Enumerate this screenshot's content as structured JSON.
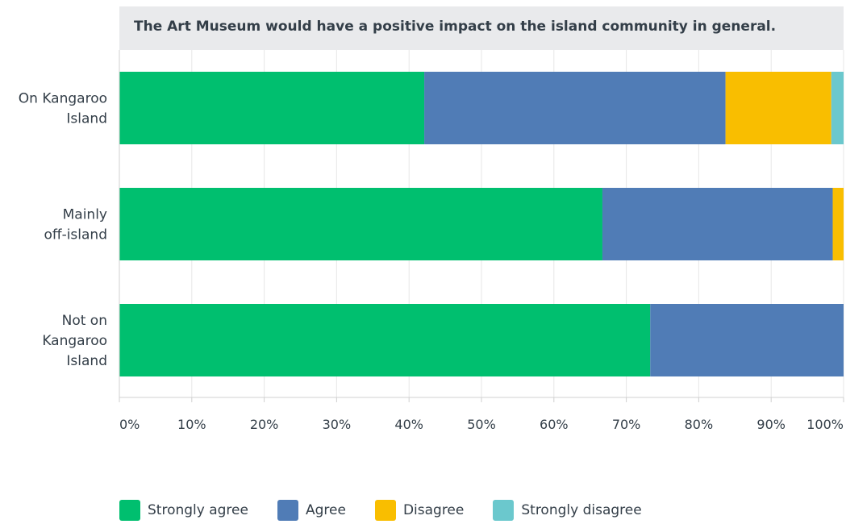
{
  "chart_data": {
    "type": "bar",
    "orientation": "horizontal",
    "stacked": true,
    "title": "The Art Museum would have a positive impact on the island community in general.",
    "categories": [
      "On Kangaroo Island",
      "Mainly off-island",
      "Not on Kangaroo Island"
    ],
    "category_lines": [
      [
        "On Kangaroo",
        "Island"
      ],
      [
        "Mainly",
        "off-island"
      ],
      [
        "Not on",
        "Kangaroo",
        "Island"
      ]
    ],
    "series": [
      {
        "name": "Strongly agree",
        "color": "#00bf6f",
        "values": [
          42.1,
          66.7,
          73.3
        ]
      },
      {
        "name": "Agree",
        "color": "#507cb6",
        "values": [
          41.6,
          31.8,
          26.7
        ]
      },
      {
        "name": "Disagree",
        "color": "#f9be00",
        "values": [
          14.6,
          1.5,
          0
        ]
      },
      {
        "name": "Strongly disagree",
        "color": "#6bc8cd",
        "values": [
          1.7,
          0,
          0
        ]
      }
    ],
    "xlim": [
      0,
      100
    ],
    "x_ticks": [
      "0%",
      "10%",
      "20%",
      "30%",
      "40%",
      "50%",
      "60%",
      "70%",
      "80%",
      "90%",
      "100%"
    ],
    "grid": true,
    "legend_position": "bottom"
  }
}
